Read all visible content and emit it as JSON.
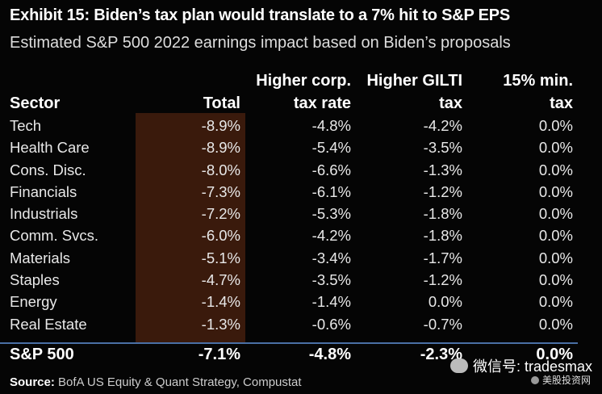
{
  "title": "Exhibit 15: Biden’s tax plan would translate to a 7% hit to S&P EPS",
  "subtitle": "Estimated S&P 500 2022 earnings impact based on Biden’s proposals",
  "headers": {
    "sector": "Sector",
    "total": "Total",
    "corp_line1": "Higher corp.",
    "corp_line2": "tax rate",
    "gilti_line1": "Higher GILTI",
    "gilti_line2": "tax",
    "min_line1": "15% min.",
    "min_line2": "tax"
  },
  "rows": [
    {
      "sector": "Tech",
      "total": "-8.9%",
      "corp": "-4.8%",
      "gilti": "-4.2%",
      "min": "0.0%"
    },
    {
      "sector": "Health Care",
      "total": "-8.9%",
      "corp": "-5.4%",
      "gilti": "-3.5%",
      "min": "0.0%"
    },
    {
      "sector": "Cons. Disc.",
      "total": "-8.0%",
      "corp": "-6.6%",
      "gilti": "-1.3%",
      "min": "0.0%"
    },
    {
      "sector": "Financials",
      "total": "-7.3%",
      "corp": "-6.1%",
      "gilti": "-1.2%",
      "min": "0.0%"
    },
    {
      "sector": "Industrials",
      "total": "-7.2%",
      "corp": "-5.3%",
      "gilti": "-1.8%",
      "min": "0.0%"
    },
    {
      "sector": "Comm. Svcs.",
      "total": "-6.0%",
      "corp": "-4.2%",
      "gilti": "-1.8%",
      "min": "0.0%"
    },
    {
      "sector": "Materials",
      "total": "-5.1%",
      "corp": "-3.4%",
      "gilti": "-1.7%",
      "min": "0.0%"
    },
    {
      "sector": "Staples",
      "total": "-4.7%",
      "corp": "-3.5%",
      "gilti": "-1.2%",
      "min": "0.0%"
    },
    {
      "sector": "Energy",
      "total": "-1.4%",
      "corp": "-1.4%",
      "gilti": "0.0%",
      "min": "0.0%"
    },
    {
      "sector": "Real Estate",
      "total": "-1.3%",
      "corp": "-0.6%",
      "gilti": "-0.7%",
      "min": "0.0%"
    }
  ],
  "summary": {
    "sector": "S&P 500",
    "total": "-7.1%",
    "corp": "-4.8%",
    "gilti": "-2.3%",
    "min": "0.0%"
  },
  "source": {
    "label": "Source:",
    "text": "BofA US Equity & Quant Strategy, Compustat"
  },
  "watermark": {
    "main": "微信号: tradesmax",
    "sub": "美股投资网"
  },
  "colors": {
    "total_band": "#3a1a0c",
    "divider": "#4a6fa5"
  }
}
